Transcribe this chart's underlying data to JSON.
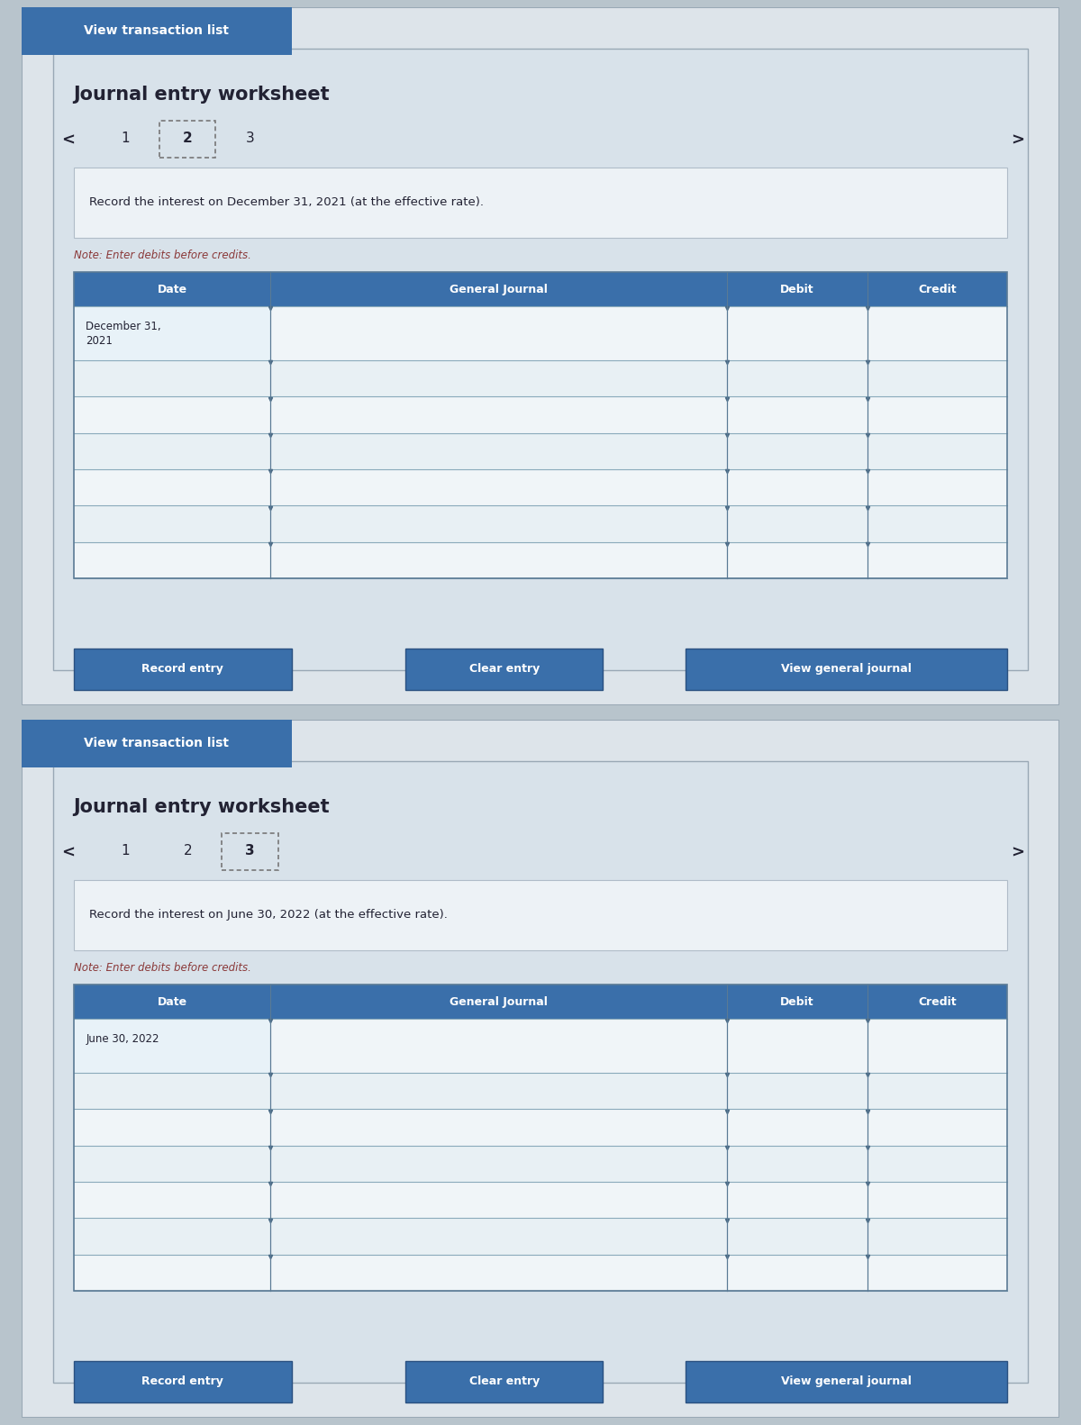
{
  "bg_outer": "#b8c4cc",
  "bg_panel": "#dde4ea",
  "bg_inner": "#e8edf2",
  "bg_texture": "#c8d0d8",
  "white": "#ffffff",
  "header_blue": "#3a6faa",
  "header_text": "#ffffff",
  "note_color": "#8b3a3a",
  "dark_text": "#222233",
  "medium_text": "#333344",
  "tab_border": "#999999",
  "row_white": "#f5f8fa",
  "row_light": "#eaf0f5",
  "table_border": "#4a6a8a",
  "line_color": "#6a8aaa",
  "btn_blue": "#3a6faa",
  "panel1": {
    "vtl_btn_text": "View transaction list",
    "title": "Journal entry worksheet",
    "tabs": [
      "1",
      "2",
      "3"
    ],
    "active_tab": 1,
    "instruction": "Record the interest on December 31, 2021 (at the effective rate).",
    "note": "Note: Enter debits before credits.",
    "date_label": "Date",
    "gj_label": "General Journal",
    "debit_label": "Debit",
    "credit_label": "Credit",
    "date_value_line1": "December 31,",
    "date_value_line2": "2021",
    "num_rows": 7,
    "btn1": "Record entry",
    "btn2": "Clear entry",
    "btn3": "View general journal"
  },
  "panel2": {
    "vtl_btn_text": "View transaction list",
    "title": "Journal entry worksheet",
    "tabs": [
      "1",
      "2",
      "3"
    ],
    "active_tab": 2,
    "instruction": "Record the interest on June 30, 2022 (at the effective rate).",
    "note": "Note: Enter debits before credits.",
    "date_label": "Date",
    "gj_label": "General Journal",
    "debit_label": "Debit",
    "credit_label": "Credit",
    "date_value_line1": "June 30, 2022",
    "date_value_line2": "",
    "num_rows": 7,
    "btn1": "Record entry",
    "btn2": "Clear entry",
    "btn3": "View general journal"
  }
}
